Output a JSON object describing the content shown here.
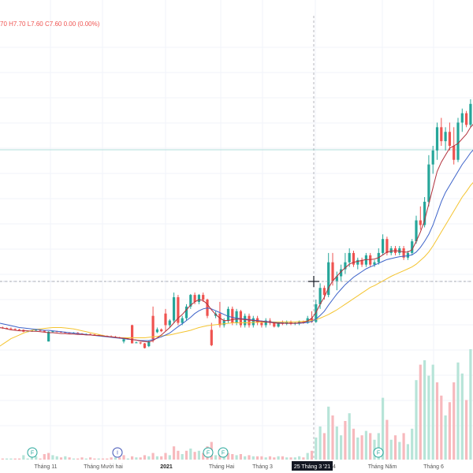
{
  "legend": {
    "o": "70",
    "h": "H7.70",
    "l": "L7.60",
    "c": "C7.60",
    "chg": "0.00 (0.00%)"
  },
  "colors": {
    "up": "#26a69a",
    "down": "#ef5350",
    "ma_red": "#b2303b",
    "ma_blue": "#3d63c9",
    "ma_yellow": "#f4c430",
    "vol_up": "#b7e4d8",
    "vol_down": "#f7b9bd"
  },
  "crosshair_date": "25 Tháng 3 '21",
  "time_axis": [
    {
      "label": "Tháng 11",
      "year": false
    },
    {
      "label": "Tháng Mười hai",
      "year": false
    },
    {
      "label": "2021",
      "year": true
    },
    {
      "label": "Tháng Hai",
      "year": false
    },
    {
      "label": "Tháng 3",
      "year": false
    },
    {
      "label": "4",
      "year": false
    },
    {
      "label": "Tháng Năm",
      "year": false
    },
    {
      "label": "Tháng 6",
      "year": false
    }
  ],
  "events": [
    {
      "type": "F",
      "icon": "financials-event-icon"
    },
    {
      "type": "I",
      "icon": "info-event-icon"
    },
    {
      "type": "F",
      "icon": "financials-event-icon"
    },
    {
      "type": "F",
      "icon": "financials-event-icon"
    },
    {
      "type": "F",
      "icon": "financials-event-icon"
    }
  ],
  "chart_data": {
    "type": "candlestick",
    "candles": [
      [
        3.05,
        3.06,
        3.0,
        3.0
      ],
      [
        3.0,
        3.02,
        2.97,
        2.99
      ],
      [
        2.99,
        3.0,
        2.97,
        2.98
      ],
      [
        2.98,
        3.0,
        2.96,
        2.97
      ],
      [
        2.97,
        2.98,
        2.95,
        2.96
      ],
      [
        2.96,
        2.97,
        2.94,
        2.95
      ],
      [
        2.95,
        2.96,
        2.9,
        2.91
      ],
      [
        2.91,
        2.93,
        2.9,
        2.92
      ],
      [
        2.92,
        2.95,
        2.91,
        2.94
      ],
      [
        2.94,
        2.96,
        2.93,
        2.95
      ],
      [
        2.95,
        2.96,
        2.92,
        2.93
      ],
      [
        2.93,
        2.94,
        2.9,
        2.91
      ],
      [
        2.7,
        2.92,
        2.7,
        2.91
      ],
      [
        2.91,
        2.93,
        2.9,
        2.92
      ],
      [
        2.92,
        2.93,
        2.9,
        2.91
      ],
      [
        2.91,
        2.92,
        2.89,
        2.9
      ],
      [
        2.9,
        2.91,
        2.88,
        2.89
      ],
      [
        2.89,
        2.9,
        2.87,
        2.88
      ],
      [
        2.88,
        2.9,
        2.87,
        2.89
      ],
      [
        2.89,
        2.9,
        2.86,
        2.87
      ],
      [
        2.87,
        2.88,
        2.84,
        2.85
      ],
      [
        2.85,
        2.87,
        2.84,
        2.86
      ],
      [
        2.86,
        2.87,
        2.84,
        2.85
      ],
      [
        2.85,
        2.86,
        2.83,
        2.84
      ],
      [
        2.84,
        2.85,
        2.82,
        2.83
      ],
      [
        2.83,
        2.84,
        2.81,
        2.82
      ],
      [
        2.82,
        2.83,
        2.8,
        2.81
      ],
      [
        2.81,
        2.83,
        2.79,
        2.8
      ],
      [
        2.8,
        2.82,
        2.78,
        2.79
      ],
      [
        2.79,
        2.8,
        2.76,
        2.77
      ],
      [
        2.7,
        2.78,
        2.66,
        2.75
      ],
      [
        2.75,
        2.77,
        2.74,
        2.76
      ],
      [
        3.05,
        3.06,
        2.66,
        2.66
      ],
      [
        2.68,
        2.7,
        2.67,
        2.68
      ],
      [
        2.68,
        2.69,
        2.64,
        2.66
      ],
      [
        2.66,
        2.67,
        2.55,
        2.56
      ],
      [
        2.6,
        2.72,
        2.58,
        2.7
      ],
      [
        3.25,
        3.45,
        2.68,
        2.75
      ],
      [
        2.9,
        3.0,
        2.88,
        2.96
      ],
      [
        2.96,
        2.98,
        2.9,
        2.92
      ],
      [
        3.3,
        3.4,
        2.92,
        3.05
      ],
      [
        3.05,
        3.18,
        3.0,
        3.15
      ],
      [
        3.15,
        3.75,
        3.1,
        3.65
      ],
      [
        3.65,
        3.7,
        3.05,
        3.1
      ],
      [
        3.1,
        3.25,
        3.05,
        3.2
      ],
      [
        3.2,
        3.5,
        3.15,
        3.45
      ],
      [
        3.45,
        3.72,
        3.4,
        3.7
      ],
      [
        3.7,
        3.75,
        3.5,
        3.55
      ],
      [
        3.55,
        3.72,
        3.5,
        3.7
      ],
      [
        3.7,
        3.75,
        3.55,
        3.6
      ],
      [
        3.6,
        3.62,
        3.2,
        3.25
      ],
      [
        2.95,
        3.1,
        2.6,
        2.62
      ],
      [
        3.25,
        3.35,
        3.2,
        3.3
      ],
      [
        3.3,
        3.55,
        3.0,
        3.05
      ],
      [
        3.05,
        3.2,
        3.0,
        3.15
      ],
      [
        3.15,
        3.45,
        3.1,
        3.4
      ],
      [
        3.4,
        3.45,
        3.05,
        3.1
      ],
      [
        3.1,
        3.4,
        3.05,
        3.35
      ],
      [
        3.35,
        3.38,
        3.0,
        3.05
      ],
      [
        3.05,
        3.3,
        3.0,
        3.25
      ],
      [
        3.25,
        3.3,
        3.0,
        3.05
      ],
      [
        3.05,
        3.25,
        3.0,
        3.2
      ],
      [
        3.2,
        3.25,
        3.05,
        3.1
      ],
      [
        3.1,
        3.15,
        3.0,
        3.05
      ],
      [
        3.05,
        3.2,
        3.0,
        3.15
      ],
      [
        3.15,
        3.2,
        3.05,
        3.1
      ],
      [
        3.1,
        3.12,
        3.0,
        3.02
      ],
      [
        3.02,
        3.12,
        3.0,
        3.1
      ],
      [
        3.1,
        3.15,
        3.05,
        3.08
      ],
      [
        3.08,
        3.15,
        3.05,
        3.12
      ],
      [
        3.12,
        3.15,
        3.05,
        3.08
      ],
      [
        3.08,
        3.12,
        3.05,
        3.1
      ],
      [
        3.1,
        3.15,
        3.05,
        3.12
      ],
      [
        3.12,
        3.15,
        3.08,
        3.1
      ],
      [
        3.1,
        3.25,
        3.08,
        3.2
      ],
      [
        3.2,
        3.35,
        3.1,
        3.12
      ],
      [
        3.12,
        3.6,
        3.1,
        3.5
      ],
      [
        3.5,
        3.95,
        3.4,
        3.85
      ],
      [
        3.85,
        3.9,
        3.6,
        3.7
      ],
      [
        3.7,
        4.6,
        3.65,
        4.4
      ],
      [
        4.4,
        4.6,
        3.9,
        4.0
      ],
      [
        4.0,
        4.2,
        3.8,
        4.1
      ],
      [
        4.1,
        4.35,
        4.0,
        4.25
      ],
      [
        4.25,
        4.6,
        4.15,
        4.4
      ],
      [
        4.4,
        4.7,
        4.3,
        4.6
      ],
      [
        4.6,
        4.65,
        4.3,
        4.35
      ],
      [
        4.35,
        4.5,
        4.25,
        4.45
      ],
      [
        4.45,
        4.5,
        4.3,
        4.35
      ],
      [
        4.35,
        4.6,
        4.3,
        4.55
      ],
      [
        4.55,
        4.6,
        4.3,
        4.35
      ],
      [
        4.35,
        4.45,
        4.3,
        4.4
      ],
      [
        4.4,
        4.7,
        4.35,
        4.6
      ],
      [
        4.6,
        5.0,
        4.55,
        4.9
      ],
      [
        4.9,
        4.95,
        4.55,
        4.6
      ],
      [
        4.6,
        4.75,
        4.55,
        4.7
      ],
      [
        4.7,
        4.75,
        4.55,
        4.6
      ],
      [
        4.6,
        4.75,
        4.55,
        4.7
      ],
      [
        4.7,
        4.75,
        4.45,
        4.5
      ],
      [
        4.5,
        4.65,
        4.45,
        4.6
      ],
      [
        4.6,
        4.9,
        4.55,
        4.85
      ],
      [
        4.85,
        5.4,
        4.8,
        5.3
      ],
      [
        5.3,
        5.6,
        5.1,
        5.2
      ],
      [
        5.2,
        5.8,
        5.15,
        5.7
      ],
      [
        5.7,
        6.7,
        5.6,
        6.5
      ],
      [
        6.5,
        6.9,
        6.3,
        6.8
      ],
      [
        6.8,
        7.4,
        6.6,
        7.3
      ],
      [
        7.3,
        7.5,
        6.9,
        7.0
      ],
      [
        7.0,
        7.3,
        6.8,
        7.2
      ],
      [
        7.2,
        7.4,
        6.8,
        6.9
      ],
      [
        6.9,
        7.3,
        6.5,
        6.6
      ],
      [
        6.6,
        7.5,
        6.55,
        7.4
      ],
      [
        7.4,
        7.7,
        7.2,
        7.6
      ],
      [
        7.6,
        7.65,
        7.3,
        7.35
      ],
      [
        7.35,
        7.9,
        7.3,
        7.8
      ],
      [
        7.8,
        8.0,
        7.5,
        7.6
      ]
    ],
    "ma_red": [
      3.0,
      2.99,
      2.97,
      2.95,
      2.94,
      2.93,
      2.93,
      2.93,
      2.92,
      2.92,
      2.91,
      2.9,
      2.89,
      2.89,
      2.88,
      2.87,
      2.87,
      2.86,
      2.86,
      2.85,
      2.85,
      2.84,
      2.84,
      2.83,
      2.83,
      2.82,
      2.81,
      2.8,
      2.79,
      2.78,
      2.77,
      2.76,
      2.74,
      2.73,
      2.71,
      2.7,
      2.69,
      2.72,
      2.78,
      2.84,
      2.92,
      3.0,
      3.1,
      3.2,
      3.28,
      3.38,
      3.48,
      3.55,
      3.6,
      3.58,
      3.5,
      3.38,
      3.28,
      3.2,
      3.15,
      3.15,
      3.17,
      3.18,
      3.18,
      3.17,
      3.16,
      3.15,
      3.14,
      3.13,
      3.12,
      3.11,
      3.1,
      3.09,
      3.09,
      3.09,
      3.09,
      3.09,
      3.1,
      3.11,
      3.14,
      3.2,
      3.32,
      3.5,
      3.65,
      3.85,
      4.0,
      4.1,
      4.2,
      4.28,
      4.36,
      4.4,
      4.42,
      4.44,
      4.46,
      4.46,
      4.47,
      4.5,
      4.56,
      4.62,
      4.64,
      4.65,
      4.64,
      4.62,
      4.62,
      4.67,
      4.85,
      5.05,
      5.3,
      5.65,
      6.0,
      6.35,
      6.55,
      6.7,
      6.85,
      6.9,
      6.95,
      7.05,
      7.15,
      7.3,
      7.4
    ],
    "ma_blue": [
      3.1,
      3.08,
      3.06,
      3.04,
      3.02,
      3.0,
      2.99,
      2.98,
      2.97,
      2.96,
      2.95,
      2.94,
      2.94,
      2.93,
      2.92,
      2.91,
      2.9,
      2.89,
      2.88,
      2.87,
      2.86,
      2.85,
      2.84,
      2.83,
      2.82,
      2.81,
      2.8,
      2.79,
      2.78,
      2.77,
      2.76,
      2.75,
      2.74,
      2.73,
      2.72,
      2.72,
      2.72,
      2.74,
      2.77,
      2.8,
      2.84,
      2.88,
      2.95,
      3.02,
      3.08,
      3.15,
      3.22,
      3.3,
      3.36,
      3.4,
      3.42,
      3.4,
      3.36,
      3.32,
      3.28,
      3.24,
      3.22,
      3.2,
      3.19,
      3.18,
      3.17,
      3.16,
      3.15,
      3.14,
      3.13,
      3.12,
      3.11,
      3.1,
      3.1,
      3.09,
      3.09,
      3.09,
      3.09,
      3.1,
      3.11,
      3.13,
      3.18,
      3.26,
      3.35,
      3.48,
      3.6,
      3.72,
      3.82,
      3.92,
      4.0,
      4.08,
      4.14,
      4.2,
      4.26,
      4.3,
      4.34,
      4.38,
      4.42,
      4.46,
      4.48,
      4.5,
      4.52,
      4.53,
      4.54,
      4.56,
      4.62,
      4.72,
      4.85,
      5.0,
      5.2,
      5.45,
      5.7,
      5.9,
      6.05,
      6.2,
      6.35,
      6.5,
      6.62,
      6.75,
      6.85
    ],
    "ma_yellow": [
      2.58,
      2.64,
      2.7,
      2.76,
      2.8,
      2.84,
      2.88,
      2.91,
      2.94,
      2.96,
      2.97,
      2.98,
      2.99,
      3.0,
      3.0,
      3.0,
      2.99,
      2.98,
      2.97,
      2.95,
      2.93,
      2.91,
      2.89,
      2.87,
      2.85,
      2.83,
      2.81,
      2.8,
      2.79,
      2.78,
      2.78,
      2.78,
      2.78,
      2.78,
      2.78,
      2.78,
      2.79,
      2.8,
      2.81,
      2.82,
      2.83,
      2.84,
      2.86,
      2.88,
      2.9,
      2.92,
      2.94,
      2.97,
      3.0,
      3.02,
      3.04,
      3.05,
      3.06,
      3.07,
      3.08,
      3.09,
      3.1,
      3.1,
      3.1,
      3.1,
      3.1,
      3.11,
      3.11,
      3.11,
      3.12,
      3.12,
      3.12,
      3.12,
      3.12,
      3.12,
      3.12,
      3.12,
      3.13,
      3.13,
      3.14,
      3.15,
      3.17,
      3.2,
      3.24,
      3.28,
      3.33,
      3.38,
      3.44,
      3.5,
      3.56,
      3.62,
      3.68,
      3.74,
      3.8,
      3.86,
      3.9,
      3.95,
      4.0,
      4.05,
      4.1,
      4.14,
      4.18,
      4.22,
      4.26,
      4.3,
      4.36,
      4.44,
      4.52,
      4.62,
      4.75,
      4.9,
      5.05,
      5.2,
      5.35,
      5.5,
      5.65,
      5.8,
      5.92,
      6.05,
      6.15
    ],
    "volume_scale_max": 100,
    "volume": [
      [
        2,
        0
      ],
      [
        1,
        1
      ],
      [
        1,
        0
      ],
      [
        1,
        0
      ],
      [
        1,
        1
      ],
      [
        1,
        1
      ],
      [
        4,
        0
      ],
      [
        1,
        0
      ],
      [
        2,
        0
      ],
      [
        3,
        0
      ],
      [
        1,
        1
      ],
      [
        5,
        1
      ],
      [
        6,
        1
      ],
      [
        4,
        0
      ],
      [
        3,
        0
      ],
      [
        2,
        1
      ],
      [
        3,
        0
      ],
      [
        2,
        1
      ],
      [
        1,
        0
      ],
      [
        1,
        1
      ],
      [
        2,
        1
      ],
      [
        1,
        0
      ],
      [
        2,
        1
      ],
      [
        1,
        1
      ],
      [
        1,
        0
      ],
      [
        1,
        1
      ],
      [
        1,
        1
      ],
      [
        2,
        1
      ],
      [
        2,
        0
      ],
      [
        2,
        1
      ],
      [
        4,
        1
      ],
      [
        1,
        0
      ],
      [
        3,
        1
      ],
      [
        2,
        0
      ],
      [
        2,
        1
      ],
      [
        4,
        1
      ],
      [
        3,
        0
      ],
      [
        6,
        1
      ],
      [
        3,
        0
      ],
      [
        3,
        1
      ],
      [
        6,
        1
      ],
      [
        4,
        0
      ],
      [
        12,
        1
      ],
      [
        8,
        1
      ],
      [
        5,
        0
      ],
      [
        8,
        1
      ],
      [
        10,
        0
      ],
      [
        7,
        1
      ],
      [
        8,
        0
      ],
      [
        6,
        1
      ],
      [
        12,
        1
      ],
      [
        16,
        1
      ],
      [
        4,
        0
      ],
      [
        8,
        1
      ],
      [
        5,
        0
      ],
      [
        6,
        1
      ],
      [
        5,
        1
      ],
      [
        4,
        0
      ],
      [
        5,
        1
      ],
      [
        3,
        0
      ],
      [
        4,
        1
      ],
      [
        3,
        0
      ],
      [
        3,
        1
      ],
      [
        3,
        1
      ],
      [
        2,
        0
      ],
      [
        3,
        1
      ],
      [
        2,
        1
      ],
      [
        3,
        0
      ],
      [
        3,
        1
      ],
      [
        2,
        0
      ],
      [
        2,
        1
      ],
      [
        2,
        0
      ],
      [
        3,
        0
      ],
      [
        2,
        1
      ],
      [
        6,
        0
      ],
      [
        8,
        1
      ],
      [
        20,
        0
      ],
      [
        30,
        0
      ],
      [
        24,
        1
      ],
      [
        48,
        0
      ],
      [
        40,
        1
      ],
      [
        30,
        0
      ],
      [
        22,
        0
      ],
      [
        35,
        1
      ],
      [
        42,
        0
      ],
      [
        28,
        1
      ],
      [
        20,
        0
      ],
      [
        22,
        1
      ],
      [
        26,
        0
      ],
      [
        24,
        1
      ],
      [
        18,
        0
      ],
      [
        24,
        0
      ],
      [
        56,
        0
      ],
      [
        36,
        1
      ],
      [
        18,
        0
      ],
      [
        22,
        1
      ],
      [
        16,
        0
      ],
      [
        24,
        1
      ],
      [
        14,
        0
      ],
      [
        28,
        0
      ],
      [
        72,
        0
      ],
      [
        86,
        1
      ],
      [
        90,
        0
      ],
      [
        76,
        0
      ],
      [
        86,
        0
      ],
      [
        70,
        1
      ],
      [
        58,
        1
      ],
      [
        40,
        0
      ],
      [
        52,
        1
      ],
      [
        70,
        1
      ],
      [
        88,
        0
      ],
      [
        78,
        0
      ],
      [
        54,
        1
      ],
      [
        100,
        0
      ],
      [
        60,
        1
      ]
    ]
  }
}
